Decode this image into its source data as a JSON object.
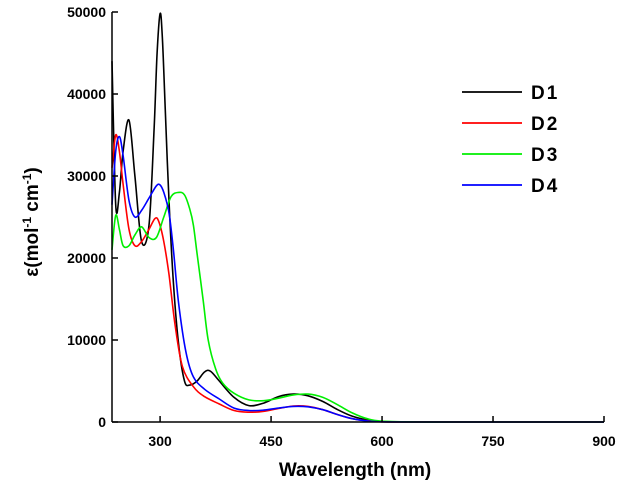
{
  "chart_data": {
    "type": "line",
    "xlabel": "Wavelength (nm)",
    "ylabel": {
      "prefix": "ε(mol",
      "sup1": "-1",
      "mid": " cm",
      "sup2": "-1",
      "suffix": ")"
    },
    "xlim": [
      235,
      900
    ],
    "ylim": [
      0,
      50000
    ],
    "x_ticks": [
      300,
      450,
      600,
      750,
      900
    ],
    "y_ticks": [
      0,
      10000,
      20000,
      30000,
      40000,
      50000
    ],
    "grid": false,
    "legend_position": "top-right",
    "series": [
      {
        "name": "D1",
        "color": "#000000",
        "x": [
          235,
          240,
          245,
          250,
          258,
          266,
          275,
          285,
          292,
          296,
          300,
          303,
          307,
          312,
          318,
          325,
          333,
          340,
          350,
          360,
          368,
          380,
          400,
          420,
          440,
          460,
          480,
          500,
          520,
          540,
          560,
          580,
          600,
          650,
          700,
          800,
          900
        ],
        "y": [
          44000,
          26500,
          28000,
          33000,
          36800,
          30000,
          22000,
          24000,
          36000,
          45000,
          49800,
          47000,
          38000,
          27000,
          17000,
          9500,
          5000,
          4500,
          5000,
          6100,
          6200,
          5000,
          3000,
          2000,
          2300,
          3100,
          3400,
          3200,
          2500,
          1500,
          700,
          250,
          50,
          0,
          0,
          0,
          0
        ]
      },
      {
        "name": "D2",
        "color": "#ff0000",
        "x": [
          235,
          240,
          245,
          250,
          258,
          266,
          275,
          285,
          293,
          298,
          305,
          312,
          320,
          330,
          345,
          360,
          380,
          400,
          420,
          440,
          460,
          480,
          500,
          520,
          540,
          560,
          580,
          600,
          650,
          700,
          800,
          900
        ],
        "y": [
          31000,
          35000,
          33000,
          29000,
          23500,
          21500,
          22000,
          23500,
          24800,
          24500,
          22000,
          18000,
          12000,
          6800,
          4300,
          3100,
          2200,
          1400,
          1200,
          1300,
          1650,
          1950,
          1900,
          1500,
          900,
          400,
          150,
          30,
          0,
          0,
          0,
          0
        ]
      },
      {
        "name": "D3",
        "color": "#00ee00",
        "x": [
          235,
          240,
          245,
          250,
          258,
          266,
          275,
          285,
          295,
          305,
          315,
          325,
          333,
          340,
          345,
          350,
          358,
          365,
          375,
          385,
          400,
          420,
          440,
          460,
          480,
          500,
          520,
          540,
          560,
          580,
          600,
          650,
          700,
          800,
          900
        ],
        "y": [
          21000,
          25200,
          23500,
          21500,
          21500,
          22800,
          23800,
          22500,
          22500,
          25000,
          27500,
          28000,
          27700,
          26000,
          24000,
          20500,
          15000,
          10000,
          6500,
          4700,
          3500,
          2700,
          2600,
          2900,
          3300,
          3400,
          3000,
          2100,
          1100,
          400,
          100,
          0,
          0,
          0,
          0
        ]
      },
      {
        "name": "D4",
        "color": "#0000ff",
        "x": [
          235,
          240,
          245,
          250,
          258,
          266,
          275,
          285,
          295,
          300,
          305,
          312,
          318,
          325,
          335,
          345,
          360,
          380,
          400,
          420,
          440,
          460,
          480,
          500,
          520,
          540,
          560,
          580,
          600,
          650,
          700,
          800,
          900
        ],
        "y": [
          26500,
          33000,
          34800,
          32500,
          27000,
          25000,
          25800,
          27300,
          28800,
          28900,
          28000,
          25500,
          21000,
          14500,
          8500,
          5500,
          4000,
          2800,
          1700,
          1400,
          1450,
          1700,
          1900,
          1850,
          1500,
          900,
          400,
          130,
          20,
          0,
          0,
          0,
          0
        ]
      }
    ]
  }
}
